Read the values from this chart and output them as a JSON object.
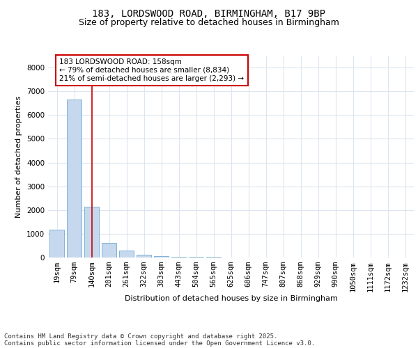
{
  "title_line1": "183, LORDSWOOD ROAD, BIRMINGHAM, B17 9BP",
  "title_line2": "Size of property relative to detached houses in Birmingham",
  "xlabel": "Distribution of detached houses by size in Birmingham",
  "ylabel": "Number of detached properties",
  "categories": [
    "19sqm",
    "79sqm",
    "140sqm",
    "201sqm",
    "261sqm",
    "322sqm",
    "383sqm",
    "443sqm",
    "504sqm",
    "565sqm",
    "625sqm",
    "686sqm",
    "747sqm",
    "807sqm",
    "868sqm",
    "929sqm",
    "990sqm",
    "1050sqm",
    "1111sqm",
    "1172sqm",
    "1232sqm"
  ],
  "values": [
    1180,
    6650,
    2150,
    620,
    290,
    130,
    70,
    40,
    30,
    25,
    0,
    0,
    0,
    0,
    0,
    0,
    0,
    0,
    0,
    0,
    0
  ],
  "bar_color": "#c5d8ed",
  "bar_edge_color": "#5a9bc9",
  "vline_x_index": 2,
  "vline_color": "#cc0000",
  "annotation_box_text": "183 LORDSWOOD ROAD: 158sqm\n← 79% of detached houses are smaller (8,834)\n21% of semi-detached houses are larger (2,293) →",
  "annotation_box_color": "#cc0000",
  "annotation_box_fill": "#ffffff",
  "annotation_fontsize": 7.5,
  "ylim": [
    0,
    8500
  ],
  "yticks": [
    0,
    1000,
    2000,
    3000,
    4000,
    5000,
    6000,
    7000,
    8000
  ],
  "background_color": "#ffffff",
  "grid_color": "#dce6f1",
  "footer_line1": "Contains HM Land Registry data © Crown copyright and database right 2025.",
  "footer_line2": "Contains public sector information licensed under the Open Government Licence v3.0.",
  "title_fontsize": 10,
  "subtitle_fontsize": 9,
  "axis_label_fontsize": 8,
  "tick_fontsize": 7.5
}
